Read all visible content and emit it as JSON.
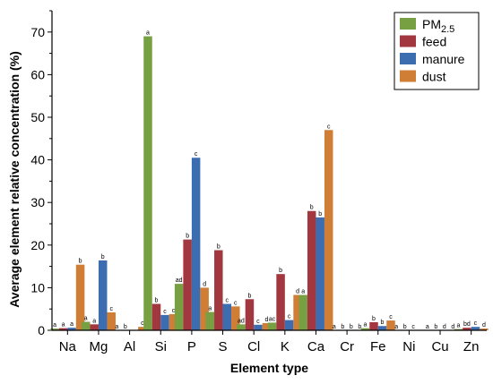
{
  "chart_data": {
    "type": "bar",
    "xlabel": "Element type",
    "ylabel": "Average element relative concentration (%)",
    "ylim": [
      0,
      75
    ],
    "yticks": [
      0,
      10,
      20,
      30,
      40,
      50,
      60,
      70
    ],
    "categories": [
      "Na",
      "Mg",
      "Al",
      "Si",
      "P",
      "S",
      "Cl",
      "K",
      "Ca",
      "Cr",
      "Fe",
      "Ni",
      "Cu",
      "Zn"
    ],
    "legend": {
      "position": "top-right"
    },
    "series": [
      {
        "name": "PM",
        "name_sub": "2.5",
        "color": "#77a043",
        "values": [
          0.4,
          2.0,
          0.0,
          69.0,
          10.9,
          4.3,
          1.4,
          1.8,
          8.3,
          0.0,
          0.5,
          0.0,
          0.0,
          0.3
        ],
        "labels": [
          "a",
          "a",
          "a",
          "a",
          "ad",
          "a",
          "ad",
          "ac",
          "a",
          "a",
          "a",
          "a",
          "a",
          "a"
        ]
      },
      {
        "name": "feed",
        "color": "#a3373f",
        "values": [
          0.5,
          1.4,
          0.0,
          6.2,
          21.3,
          18.8,
          7.3,
          13.2,
          28.0,
          0.0,
          1.9,
          0.0,
          0.0,
          0.6
        ],
        "labels": [
          "a",
          "a",
          "b",
          "b",
          "b",
          "b",
          "b",
          "b",
          "b",
          "b",
          "b",
          "b",
          "b",
          "bd"
        ]
      },
      {
        "name": "manure",
        "color": "#3d6db1",
        "values": [
          0.6,
          16.4,
          0.0,
          3.6,
          40.5,
          6.2,
          1.3,
          2.4,
          26.5,
          0.0,
          1.0,
          0.0,
          0.0,
          0.8
        ],
        "labels": [
          "a",
          "b",
          "",
          "c",
          "c",
          "c",
          "c",
          "c",
          "b",
          "b",
          "b",
          "c",
          "d",
          "c"
        ]
      },
      {
        "name": "dust",
        "color": "#d07d35",
        "values": [
          15.4,
          4.2,
          0.8,
          3.8,
          10.0,
          5.6,
          1.7,
          8.3,
          47.0,
          0.0,
          2.3,
          0.0,
          0.0,
          0.4
        ],
        "labels": [
          "b",
          "c",
          "c",
          "c",
          "d",
          "c",
          "d",
          "d",
          "c",
          "b",
          "c",
          "",
          "d",
          "d"
        ]
      }
    ]
  }
}
